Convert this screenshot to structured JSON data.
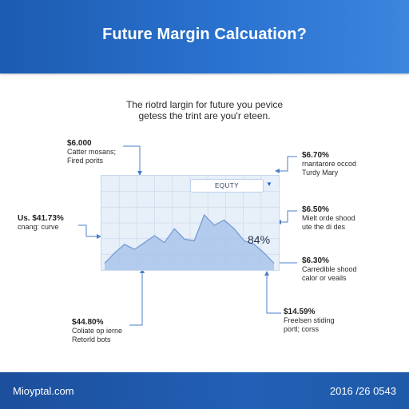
{
  "header": {
    "title": "Future Margin Calcuation?",
    "color": "#2a6bc4"
  },
  "intro": {
    "line1": "The riotrd largin for future you pevice",
    "line2": "getess the trint are you'r eteen."
  },
  "chart": {
    "legend_label": "EQUTY",
    "percent_label": "84%",
    "fill_color": "#a9c4ea",
    "line_color": "#6f98d4"
  },
  "chart_data": {
    "type": "area",
    "title": "",
    "xlabel": "",
    "ylabel": "",
    "ylim": [
      0,
      1
    ],
    "values": [
      0.06,
      0.18,
      0.28,
      0.22,
      0.3,
      0.38,
      0.3,
      0.46,
      0.34,
      0.32,
      0.62,
      0.5,
      0.56,
      0.46,
      0.32,
      0.28,
      0.18,
      0.06
    ],
    "grid": true,
    "legend": "top-right"
  },
  "callouts": {
    "top_left": {
      "value": "$6.000",
      "line1": "Catter mosans;",
      "line2": "Fired porits"
    },
    "mid_left": {
      "value": "Us. $41.73%",
      "line1": "cnang: curve"
    },
    "bottom_left": {
      "value": "$44.80%",
      "line1": "Coliate op ierne",
      "line2": "Retorld bots"
    },
    "right_1": {
      "value": "$6.70%",
      "line1": "rnantarore occod",
      "line2": "Turdy Mary"
    },
    "right_2": {
      "value": "$6.50%",
      "line1": "Mielt orde shood",
      "line2": "ute the di des"
    },
    "right_3": {
      "value": "$6.30%",
      "line1": "Carredible shood",
      "line2": "calor or veails"
    },
    "bottom_right": {
      "value": "$14.59%",
      "line1": "Freelsen stiding",
      "line2": "portl; corss"
    }
  },
  "footer": {
    "left": "Mioyptal.com",
    "right": "2016 /26 0543"
  }
}
